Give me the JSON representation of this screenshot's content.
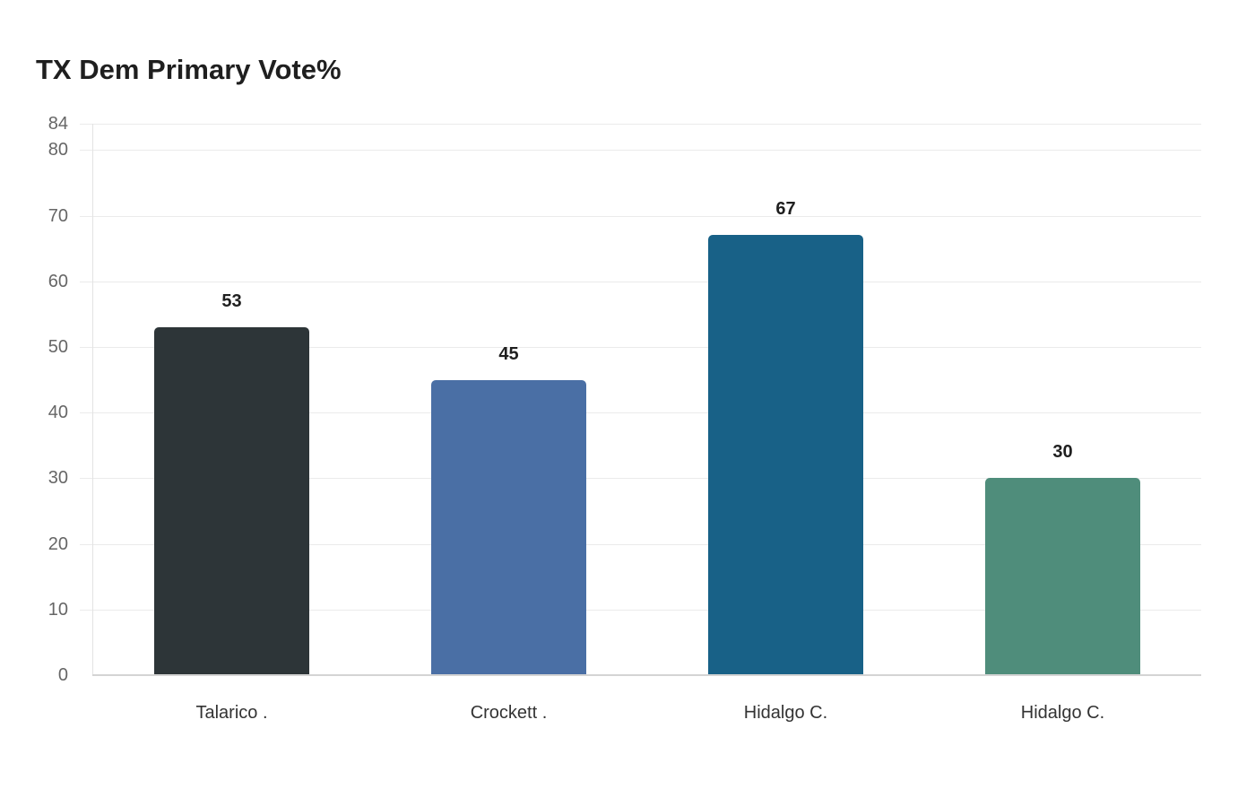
{
  "chart_data": {
    "type": "bar",
    "title": "TX Dem Primary Vote%",
    "xlabel": "",
    "ylabel": "",
    "categories": [
      "Talarico .",
      "Crockett .",
      "Hidalgo C.",
      "Hidalgo C."
    ],
    "values": [
      53,
      45,
      67,
      30
    ],
    "colors": [
      "#2d3538",
      "#4a6fa5",
      "#186187",
      "#4f8d7b"
    ],
    "ylim": [
      0,
      84
    ],
    "yticks": [
      0,
      10,
      20,
      30,
      40,
      50,
      60,
      70,
      80,
      84
    ],
    "grid": true,
    "legend": "none",
    "data_labels": true
  }
}
